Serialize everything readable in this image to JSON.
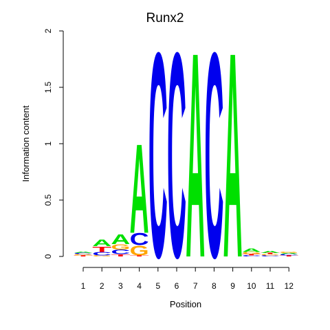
{
  "chart_data": {
    "type": "sequence-logo",
    "title": "Runx2",
    "xlabel": "Position",
    "ylabel": "Information content",
    "ylim": [
      0,
      2
    ],
    "yticks": [
      "0",
      "0.5",
      "1",
      "1.5",
      "2"
    ],
    "xticks": [
      "1",
      "2",
      "3",
      "4",
      "5",
      "6",
      "7",
      "8",
      "9",
      "10",
      "11",
      "12"
    ],
    "colors": {
      "A": "#00e000",
      "C": "#0000ee",
      "G": "#ffa500",
      "T": "#ff0000"
    },
    "positions": [
      {
        "x": "1",
        "letters": [
          {
            "base": "T",
            "height": 0.01
          },
          {
            "base": "G",
            "height": 0.01
          },
          {
            "base": "C",
            "height": 0.01
          },
          {
            "base": "A",
            "height": 0.01
          }
        ]
      },
      {
        "x": "2",
        "letters": [
          {
            "base": "G",
            "height": 0.01
          },
          {
            "base": "C",
            "height": 0.03
          },
          {
            "base": "T",
            "height": 0.05
          },
          {
            "base": "A",
            "height": 0.06
          }
        ]
      },
      {
        "x": "3",
        "letters": [
          {
            "base": "T",
            "height": 0.02
          },
          {
            "base": "C",
            "height": 0.04
          },
          {
            "base": "G",
            "height": 0.05
          },
          {
            "base": "A",
            "height": 0.09
          }
        ]
      },
      {
        "x": "4",
        "letters": [
          {
            "base": "T",
            "height": 0.01
          },
          {
            "base": "G",
            "height": 0.09
          },
          {
            "base": "C",
            "height": 0.11
          },
          {
            "base": "A",
            "height": 0.81
          }
        ]
      },
      {
        "x": "5",
        "letters": [
          {
            "base": "C",
            "height": 1.86
          }
        ]
      },
      {
        "x": "6",
        "letters": [
          {
            "base": "C",
            "height": 1.86
          }
        ]
      },
      {
        "x": "7",
        "letters": [
          {
            "base": "A",
            "height": 1.86
          }
        ]
      },
      {
        "x": "8",
        "letters": [
          {
            "base": "C",
            "height": 1.86
          }
        ]
      },
      {
        "x": "9",
        "letters": [
          {
            "base": "A",
            "height": 1.86
          }
        ]
      },
      {
        "x": "10",
        "letters": [
          {
            "base": "C",
            "height": 0.01
          },
          {
            "base": "T",
            "height": 0.01
          },
          {
            "base": "G",
            "height": 0.02
          },
          {
            "base": "A",
            "height": 0.03
          }
        ]
      },
      {
        "x": "11",
        "letters": [
          {
            "base": "C",
            "height": 0.01
          },
          {
            "base": "G",
            "height": 0.01
          },
          {
            "base": "T",
            "height": 0.01
          },
          {
            "base": "A",
            "height": 0.02
          }
        ]
      },
      {
        "x": "12",
        "letters": [
          {
            "base": "T",
            "height": 0.01
          },
          {
            "base": "C",
            "height": 0.01
          },
          {
            "base": "A",
            "height": 0.01
          },
          {
            "base": "G",
            "height": 0.01
          }
        ]
      }
    ]
  }
}
